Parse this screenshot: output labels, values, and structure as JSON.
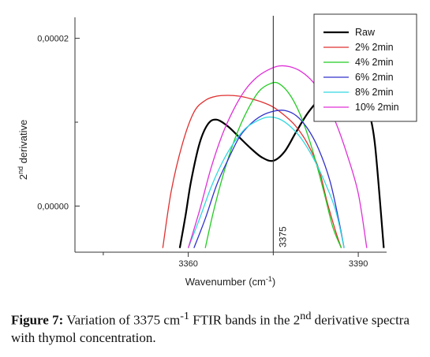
{
  "chart_data": {
    "type": "line",
    "xlabel": "Wavenumber (cm",
    "xlabel_sup": "-1",
    "xlabel_close": ")",
    "ylabel": "2",
    "ylabel_sup": "nd",
    "ylabel_rest": " derivative",
    "xlim": [
      3340,
      3395
    ],
    "ylim": [
      -5.5e-06,
      2.25e-05
    ],
    "x_ticks": [
      {
        "value": 3360,
        "label": "3360"
      },
      {
        "value": 3390,
        "label": "3390"
      }
    ],
    "x_minor_ticks": [
      3345,
      3375
    ],
    "y_ticks": [
      {
        "value": 0.0,
        "label": "0,00000"
      },
      {
        "value": 2e-05,
        "label": "0,00002"
      }
    ],
    "y_minor_ticks": [
      1e-05
    ],
    "reference_line": {
      "x": 3375,
      "label": "3375"
    },
    "legend_position": "top-right",
    "series": [
      {
        "name": "Raw",
        "color": "#000000",
        "x": [
          3358.5,
          3359.5,
          3360.5,
          3362,
          3363.5,
          3365,
          3367,
          3369,
          3371,
          3373,
          3375,
          3377,
          3379,
          3381,
          3383,
          3385,
          3387,
          3388.5,
          3390,
          3391,
          3392,
          3393,
          3394.5
        ],
        "y": [
          -5e-06,
          -1.2e-06,
          3e-06,
          7.5e-06,
          9.8e-06,
          1.03e-05,
          9.5e-06,
          8.2e-06,
          6.9e-06,
          5.8e-06,
          5.4e-06,
          6.5e-06,
          8.8e-06,
          1.1e-05,
          1.27e-05,
          1.43e-05,
          1.5e-05,
          1.53e-05,
          1.48e-05,
          1.35e-05,
          1.1e-05,
          7e-06,
          -5e-06
        ]
      },
      {
        "name": "2% 2min",
        "color": "#e03030",
        "x": [
          3355.5,
          3357,
          3359,
          3361,
          3363,
          3365,
          3367,
          3369,
          3371,
          3373,
          3375,
          3377,
          3379,
          3381,
          3383,
          3384.5,
          3386,
          3387
        ],
        "y": [
          -5e-06,
          1.8e-06,
          7.5e-06,
          1.12e-05,
          1.26e-05,
          1.31e-05,
          1.32e-05,
          1.31e-05,
          1.28e-05,
          1.24e-05,
          1.18e-05,
          1.08e-05,
          9.5e-06,
          7.5e-06,
          4.5e-06,
          5e-07,
          -3e-06,
          -5e-06
        ]
      },
      {
        "name": "4% 2min",
        "color": "#22cc22",
        "x": [
          3363,
          3364.5,
          3366.5,
          3368.5,
          3370.5,
          3372.5,
          3374.5,
          3376,
          3378,
          3380,
          3382,
          3384,
          3385.5,
          3387
        ],
        "y": [
          -5e-06,
          -5e-07,
          4.5e-06,
          8.5e-06,
          1.15e-05,
          1.37e-05,
          1.46e-05,
          1.46e-05,
          1.32e-05,
          1.05e-05,
          6.5e-06,
          1.5e-06,
          -2.5e-06,
          -5e-06
        ]
      },
      {
        "name": "6% 2min",
        "color": "#3030cc",
        "x": [
          3361,
          3363,
          3365,
          3367,
          3369,
          3371,
          3373,
          3375,
          3377,
          3379,
          3381,
          3383,
          3385,
          3386.5,
          3387.5
        ],
        "y": [
          -5e-06,
          -1.5e-06,
          2.5e-06,
          5.5e-06,
          8.2e-06,
          9.8e-06,
          1.08e-05,
          1.13e-05,
          1.14e-05,
          1.08e-05,
          9.3e-06,
          6.8e-06,
          3e-06,
          -1.5e-06,
          -5e-06
        ]
      },
      {
        "name": "8% 2min",
        "color": "#30d8e0",
        "x": [
          3360,
          3362,
          3364,
          3366,
          3368,
          3370,
          3372,
          3374,
          3376,
          3378,
          3380,
          3382,
          3384,
          3386,
          3387.5
        ],
        "y": [
          -5e-06,
          -1.5e-06,
          2.2e-06,
          5.2e-06,
          7.5e-06,
          9.2e-06,
          1.01e-05,
          1.06e-05,
          1.04e-05,
          9.5e-06,
          8e-06,
          5.8e-06,
          3e-06,
          -5e-07,
          -5e-06
        ]
      },
      {
        "name": "10% 2min",
        "color": "#e030d8",
        "x": [
          3360,
          3362,
          3364,
          3366,
          3368,
          3370,
          3372,
          3374,
          3376,
          3378,
          3380,
          3382,
          3384,
          3386,
          3388,
          3390,
          3391.5
        ],
        "y": [
          -5e-06,
          -5e-07,
          4.5e-06,
          8.5e-06,
          1.15e-05,
          1.38e-05,
          1.53e-05,
          1.62e-05,
          1.67e-05,
          1.66e-05,
          1.6e-05,
          1.48e-05,
          1.28e-05,
          1e-05,
          6.2e-06,
          1.5e-06,
          -5e-06
        ]
      }
    ]
  },
  "caption": {
    "label": "Figure 7:",
    "text_before_sup1": " Variation of 3375 cm",
    "sup1": "-1",
    "text_mid": " FTIR bands in the 2",
    "sup2": "nd",
    "text_after": " derivative spectra with thymol concentration."
  }
}
